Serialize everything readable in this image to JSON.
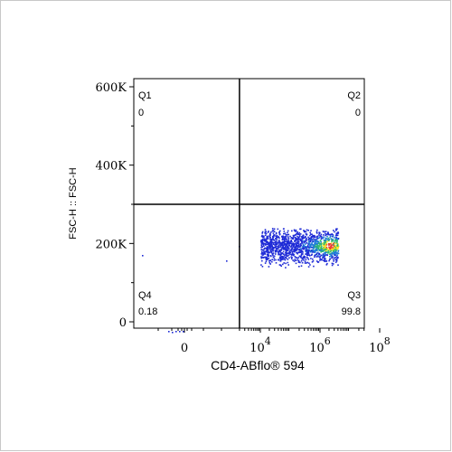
{
  "chart_data": {
    "type": "scatter",
    "title": "",
    "xlabel": "CD4-ABflo® 594",
    "ylabel": "FSC-H :: FSC-H",
    "x_scale": "biexponential (log decades)",
    "x_ticks": [
      "0",
      "10",
      "10",
      "10"
    ],
    "x_tick_exponents": [
      "",
      "4",
      "6",
      "8"
    ],
    "y_ticks": [
      "600K",
      "400K",
      "200K",
      "0"
    ],
    "ylim": [
      0,
      630000
    ],
    "quadrants": [
      {
        "name": "Q1",
        "value": "0",
        "position": "top-left"
      },
      {
        "name": "Q2",
        "value": "0",
        "position": "top-right"
      },
      {
        "name": "Q3",
        "value": "99.8",
        "position": "bottom-right"
      },
      {
        "name": "Q4",
        "value": "0.18",
        "position": "bottom-left"
      }
    ],
    "gate": {
      "x_log10": 3.3,
      "y": 300000
    },
    "population": {
      "x_log10_range": [
        4.0,
        6.6
      ],
      "x_log10_dense": 6.3,
      "y_range": [
        140000,
        240000
      ],
      "y_center": 195000,
      "density_colors": [
        "#1f2bd6",
        "#1e7bd8",
        "#2bb673",
        "#f5e61a",
        "#e83b2c"
      ]
    },
    "grid": false,
    "legend": "none"
  }
}
